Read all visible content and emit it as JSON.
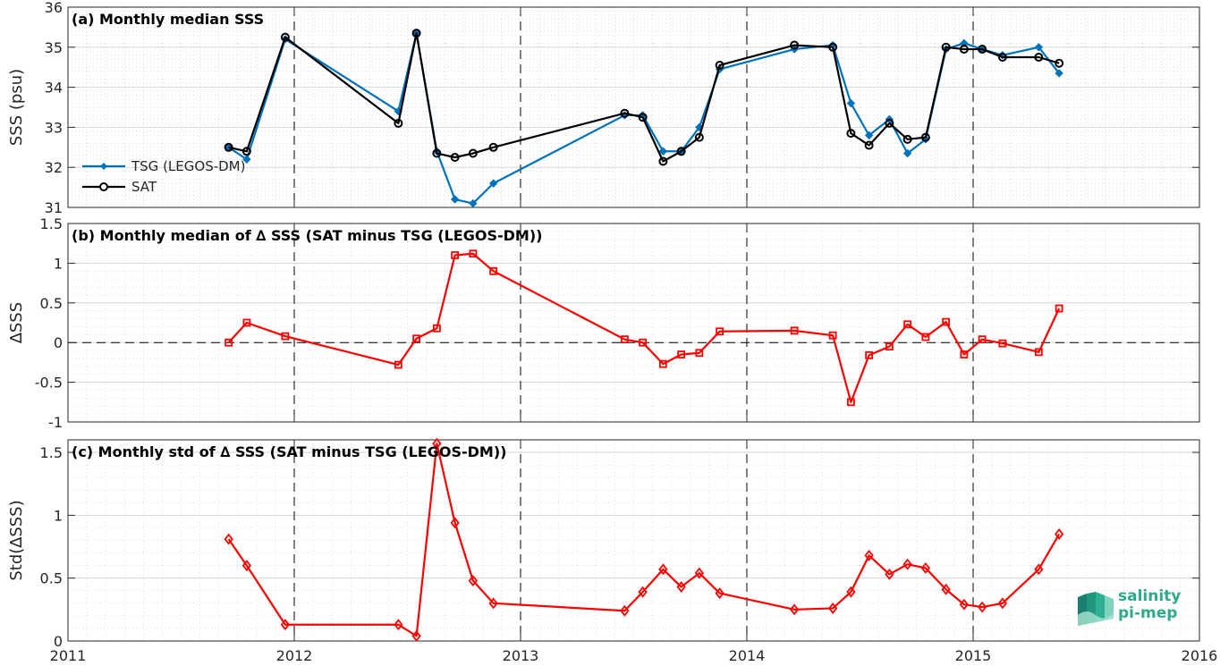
{
  "chart_data": [
    {
      "type": "line",
      "title": "(a) Monthly median SSS",
      "ylabel": "SSS (psu)",
      "xlim": [
        2011,
        2016
      ],
      "ylim": [
        31,
        36
      ],
      "yticks": [
        31,
        32,
        33,
        34,
        35,
        36
      ],
      "legend_position": "lower-left",
      "series": [
        {
          "name": "TSG (LEGOS-DM)",
          "color": "#0072BD",
          "marker": "diamond",
          "x": [
            2011.71,
            2011.79,
            2011.96,
            2012.46,
            2012.54,
            2012.63,
            2012.71,
            2012.79,
            2012.88,
            2013.46,
            2013.54,
            2013.63,
            2013.71,
            2013.79,
            2013.88,
            2014.21,
            2014.38,
            2014.46,
            2014.54,
            2014.63,
            2014.71,
            2014.79,
            2014.88,
            2014.96,
            2015.04,
            2015.13,
            2015.29,
            2015.38
          ],
          "y": [
            32.5,
            32.2,
            35.2,
            33.4,
            35.35,
            32.4,
            31.2,
            31.1,
            31.6,
            33.3,
            33.3,
            32.4,
            32.4,
            33.0,
            34.45,
            34.95,
            35.05,
            33.6,
            32.8,
            33.2,
            32.35,
            32.7,
            34.95,
            35.1,
            34.95,
            34.8,
            35.0,
            34.35
          ]
        },
        {
          "name": "SAT",
          "color": "#000000",
          "marker": "circle",
          "x": [
            2011.71,
            2011.79,
            2011.96,
            2012.46,
            2012.54,
            2012.63,
            2012.71,
            2012.79,
            2012.88,
            2013.46,
            2013.54,
            2013.63,
            2013.71,
            2013.79,
            2013.88,
            2014.21,
            2014.38,
            2014.46,
            2014.54,
            2014.63,
            2014.71,
            2014.79,
            2014.88,
            2014.96,
            2015.04,
            2015.13,
            2015.29,
            2015.38
          ],
          "y": [
            32.5,
            32.4,
            35.25,
            33.1,
            35.35,
            32.35,
            32.25,
            32.35,
            32.5,
            33.35,
            33.25,
            32.15,
            32.4,
            32.75,
            34.55,
            35.05,
            35.0,
            32.85,
            32.55,
            33.1,
            32.7,
            32.75,
            35.0,
            34.95,
            34.95,
            34.75,
            34.75,
            34.6
          ]
        }
      ]
    },
    {
      "type": "line",
      "title": "(b) Monthly median of ∆ SSS (SAT minus TSG (LEGOS-DM))",
      "ylabel": "∆SSS",
      "xlim": [
        2011,
        2016
      ],
      "ylim": [
        -1,
        1.5
      ],
      "yticks": [
        -1,
        -0.5,
        0,
        0.5,
        1,
        1.5
      ],
      "ytick_labels": [
        "-1",
        "-0.5",
        "0",
        "0.5",
        "1",
        "1.5"
      ],
      "series": [
        {
          "color": "#FF0000",
          "marker": "square",
          "x": [
            2011.71,
            2011.79,
            2011.96,
            2012.46,
            2012.54,
            2012.63,
            2012.71,
            2012.79,
            2012.88,
            2013.46,
            2013.54,
            2013.63,
            2013.71,
            2013.79,
            2013.88,
            2014.21,
            2014.38,
            2014.46,
            2014.54,
            2014.63,
            2014.71,
            2014.79,
            2014.88,
            2014.96,
            2015.04,
            2015.13,
            2015.29,
            2015.38
          ],
          "y": [
            0.0,
            0.25,
            0.08,
            -0.28,
            0.05,
            0.18,
            1.1,
            1.12,
            0.9,
            0.04,
            0.0,
            -0.27,
            -0.15,
            -0.13,
            0.14,
            0.15,
            0.09,
            -0.75,
            -0.16,
            -0.05,
            0.23,
            0.07,
            0.26,
            -0.15,
            0.04,
            -0.01,
            -0.12,
            0.43
          ]
        }
      ]
    },
    {
      "type": "line",
      "title": "(c) Monthly std of ∆ SSS (SAT minus TSG (LEGOS-DM))",
      "ylabel": "Std(∆SSS)",
      "xlim": [
        2011,
        2016
      ],
      "ylim": [
        0,
        1.6
      ],
      "yticks": [
        0,
        0.5,
        1,
        1.5
      ],
      "ytick_labels": [
        "0",
        "0.5",
        "1",
        "1.5"
      ],
      "xticks": [
        2011,
        2012,
        2013,
        2014,
        2015,
        2016
      ],
      "series": [
        {
          "color": "#FF0000",
          "marker": "diamond",
          "x": [
            2011.71,
            2011.79,
            2011.96,
            2012.46,
            2012.54,
            2012.63,
            2012.71,
            2012.79,
            2012.88,
            2013.46,
            2013.54,
            2013.63,
            2013.71,
            2013.79,
            2013.88,
            2014.21,
            2014.38,
            2014.46,
            2014.54,
            2014.63,
            2014.71,
            2014.79,
            2014.88,
            2014.96,
            2015.04,
            2015.13,
            2015.29,
            2015.38
          ],
          "y": [
            0.81,
            0.6,
            0.13,
            0.13,
            0.04,
            1.57,
            0.94,
            0.48,
            0.3,
            0.24,
            0.39,
            0.57,
            0.43,
            0.54,
            0.38,
            0.25,
            0.26,
            0.39,
            0.68,
            0.53,
            0.61,
            0.58,
            0.41,
            0.29,
            0.27,
            0.3,
            0.57,
            0.85
          ]
        }
      ]
    }
  ],
  "logo": {
    "line1": "salinity",
    "line2": "pi-mep"
  }
}
